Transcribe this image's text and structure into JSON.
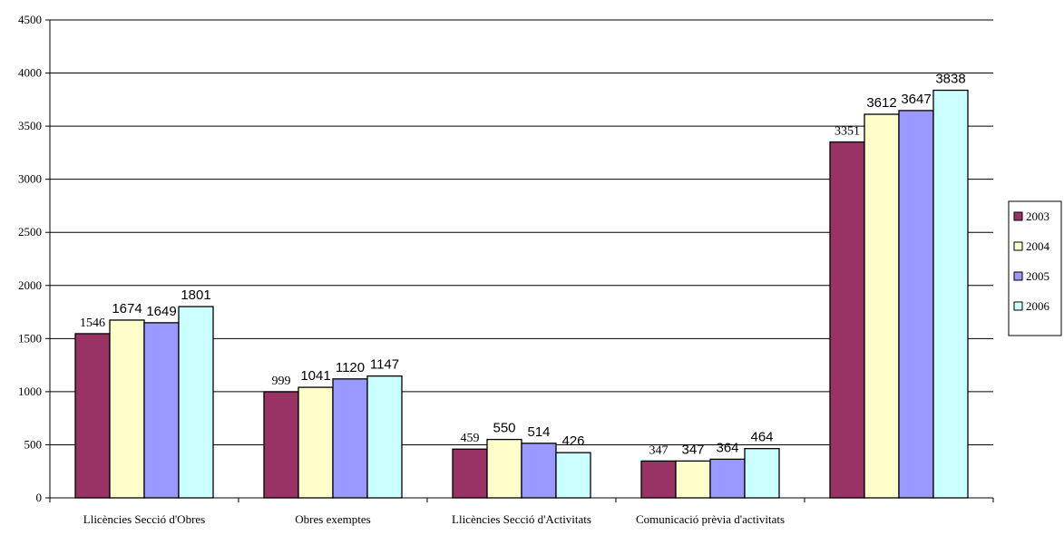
{
  "chart_data": {
    "type": "bar",
    "categories": [
      "Llicències Secció d'Obres",
      "Obres exemptes",
      "Llicències Secció d'Activitats",
      "Comunicació prèvia d'activitats",
      ""
    ],
    "series": [
      {
        "name": "2003",
        "color": "#993366",
        "values": [
          1546,
          999,
          459,
          347,
          3351
        ]
      },
      {
        "name": "2004",
        "color": "#FFFFCC",
        "values": [
          1674,
          1041,
          550,
          347,
          3612
        ]
      },
      {
        "name": "2005",
        "color": "#9999FF",
        "values": [
          1649,
          1120,
          514,
          364,
          3647
        ]
      },
      {
        "name": "2006",
        "color": "#CCFFFF",
        "values": [
          1801,
          1147,
          426,
          464,
          3838
        ]
      }
    ],
    "ylim": [
      0,
      4500
    ],
    "yticks": [
      0,
      500,
      1000,
      1500,
      2000,
      2500,
      3000,
      3500,
      4000,
      4500
    ],
    "grid": true,
    "legend_position": "right",
    "title": "",
    "xlabel": "",
    "ylabel": ""
  }
}
